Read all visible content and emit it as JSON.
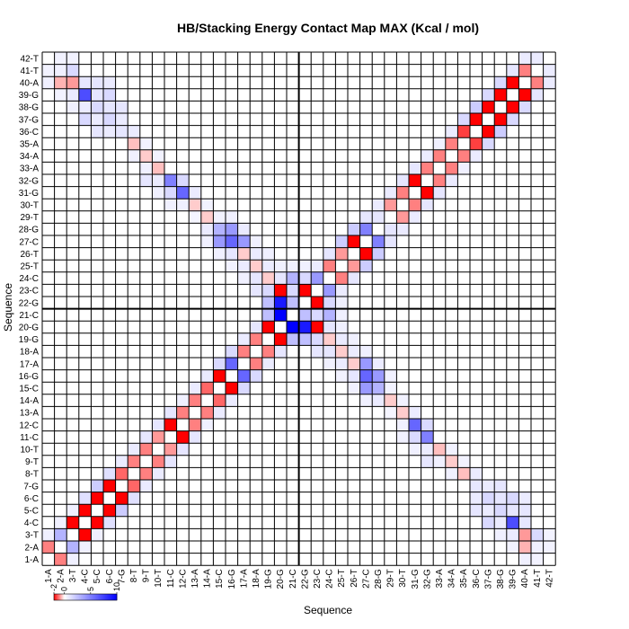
{
  "chart_data": {
    "type": "heatmap",
    "title": "HB/Stacking Energy Contact Map MAX (Kcal / mol)",
    "xlabel": "Sequence",
    "ylabel": "Sequence",
    "labels": [
      "1-A",
      "2-A",
      "3-T",
      "4-C",
      "5-C",
      "6-C",
      "7-G",
      "8-T",
      "9-T",
      "10-T",
      "11-C",
      "12-C",
      "13-A",
      "14-A",
      "15-C",
      "16-G",
      "17-A",
      "18-A",
      "19-G",
      "20-G",
      "21-C",
      "22-G",
      "23-C",
      "24-C",
      "25-T",
      "26-T",
      "27-C",
      "28-G",
      "29-T",
      "30-T",
      "31-G",
      "32-G",
      "33-A",
      "34-A",
      "35-A",
      "36-C",
      "37-G",
      "38-G",
      "39-G",
      "40-A",
      "41-T",
      "42-T"
    ],
    "divider_after_index": 21,
    "color_scale": {
      "min": -2,
      "max": 10,
      "ticks": [
        "-2",
        "0",
        "5",
        "10"
      ],
      "low_color": "#ff0000",
      "mid_color": "#ffffff",
      "high_color": "#0000ff"
    },
    "cells": [
      [
        1,
        2,
        -1
      ],
      [
        2,
        3,
        3
      ],
      [
        3,
        4,
        -2
      ],
      [
        4,
        5,
        -2
      ],
      [
        5,
        6,
        -2
      ],
      [
        6,
        7,
        -2
      ],
      [
        7,
        8,
        -1.2
      ],
      [
        8,
        9,
        -1
      ],
      [
        9,
        10,
        -1
      ],
      [
        10,
        11,
        -0.8
      ],
      [
        11,
        12,
        -2
      ],
      [
        12,
        13,
        -1
      ],
      [
        13,
        14,
        -1
      ],
      [
        14,
        15,
        -1.2
      ],
      [
        15,
        16,
        -2
      ],
      [
        16,
        17,
        6
      ],
      [
        17,
        18,
        -1
      ],
      [
        18,
        19,
        -1
      ],
      [
        19,
        20,
        -2
      ],
      [
        20,
        21,
        10
      ],
      [
        21,
        22,
        -0.8
      ],
      [
        22,
        23,
        -2
      ],
      [
        23,
        24,
        4
      ],
      [
        24,
        25,
        -1
      ],
      [
        25,
        26,
        -0.8
      ],
      [
        26,
        27,
        -2
      ],
      [
        27,
        28,
        5
      ],
      [
        28,
        29,
        1
      ],
      [
        29,
        30,
        -0.8
      ],
      [
        30,
        31,
        -1
      ],
      [
        31,
        32,
        -2
      ],
      [
        32,
        33,
        -1
      ],
      [
        33,
        34,
        -1
      ],
      [
        34,
        35,
        -1
      ],
      [
        35,
        36,
        -1.5
      ],
      [
        36,
        37,
        -2
      ],
      [
        37,
        38,
        -2
      ],
      [
        38,
        39,
        -2
      ],
      [
        39,
        40,
        -2
      ],
      [
        40,
        41,
        -1
      ],
      [
        41,
        42,
        0.8
      ],
      [
        3,
        40,
        -0.8
      ],
      [
        4,
        39,
        7
      ],
      [
        5,
        38,
        1.5
      ],
      [
        6,
        37,
        1.5
      ],
      [
        4,
        37,
        1.5
      ],
      [
        6,
        39,
        1.5
      ],
      [
        5,
        36,
        1
      ],
      [
        7,
        36,
        1
      ],
      [
        3,
        41,
        1.5
      ],
      [
        2,
        40,
        -0.6
      ],
      [
        8,
        35,
        -0.5
      ],
      [
        9,
        34,
        -0.4
      ],
      [
        10,
        33,
        -0.5
      ],
      [
        11,
        32,
        5
      ],
      [
        12,
        31,
        6
      ],
      [
        11,
        31,
        1.5
      ],
      [
        12,
        32,
        1.5
      ],
      [
        9,
        32,
        1
      ],
      [
        13,
        30,
        -0.4
      ],
      [
        14,
        29,
        -0.4
      ],
      [
        15,
        28,
        3
      ],
      [
        16,
        27,
        6
      ],
      [
        15,
        27,
        4
      ],
      [
        16,
        28,
        4
      ],
      [
        17,
        27,
        4
      ],
      [
        17,
        26,
        -0.4
      ],
      [
        18,
        25,
        -0.4
      ],
      [
        19,
        24,
        -0.4
      ],
      [
        18,
        23,
        1
      ],
      [
        19,
        23,
        1.5
      ],
      [
        20,
        22,
        9
      ],
      [
        19,
        22,
        2.5
      ],
      [
        20,
        23,
        -2
      ],
      [
        21,
        24,
        3
      ],
      [
        19,
        21,
        2.5
      ],
      [
        22,
        24,
        1.5
      ],
      [
        21,
        22,
        2.5
      ],
      [
        24,
        26,
        1
      ],
      [
        25,
        27,
        2
      ],
      [
        26,
        28,
        2
      ],
      [
        23,
        25,
        0.8
      ],
      [
        18,
        20,
        1
      ],
      [
        17,
        19,
        0.8
      ],
      [
        16,
        18,
        1.5
      ],
      [
        15,
        17,
        1.5
      ],
      [
        14,
        16,
        0.8
      ],
      [
        13,
        15,
        0.8
      ],
      [
        12,
        14,
        0.6
      ],
      [
        11,
        13,
        1
      ],
      [
        10,
        12,
        1
      ],
      [
        9,
        11,
        1
      ],
      [
        8,
        10,
        0.8
      ],
      [
        7,
        9,
        0.8
      ],
      [
        6,
        8,
        1.2
      ],
      [
        5,
        7,
        2
      ],
      [
        4,
        6,
        1.2
      ],
      [
        3,
        5,
        0.6
      ],
      [
        2,
        4,
        0.6
      ],
      [
        1,
        3,
        0.6
      ],
      [
        27,
        29,
        1
      ],
      [
        28,
        30,
        0.8
      ],
      [
        29,
        31,
        0.8
      ],
      [
        30,
        32,
        1
      ],
      [
        31,
        33,
        1
      ],
      [
        32,
        34,
        0.8
      ],
      [
        33,
        35,
        0.6
      ],
      [
        34,
        36,
        0.8
      ],
      [
        35,
        37,
        1.5
      ],
      [
        36,
        38,
        2
      ],
      [
        37,
        39,
        1.5
      ],
      [
        38,
        40,
        1.5
      ],
      [
        39,
        41,
        1
      ],
      [
        40,
        42,
        0.8
      ],
      [
        5,
        40,
        1
      ],
      [
        6,
        40,
        0.8
      ],
      [
        7,
        38,
        1
      ],
      [
        7,
        37,
        0.8
      ],
      [
        8,
        36,
        0.8
      ],
      [
        3,
        39,
        0.8
      ],
      [
        4,
        40,
        1
      ],
      [
        6,
        38,
        1
      ],
      [
        5,
        39,
        1
      ],
      [
        8,
        34,
        0.6
      ],
      [
        10,
        32,
        0.8
      ],
      [
        9,
        33,
        0.6
      ],
      [
        10,
        34,
        0.5
      ],
      [
        13,
        31,
        0.8
      ],
      [
        14,
        30,
        0.5
      ],
      [
        14,
        28,
        0.8
      ],
      [
        15,
        29,
        0.5
      ],
      [
        16,
        26,
        1
      ],
      [
        17,
        25,
        0.8
      ],
      [
        18,
        24,
        1
      ],
      [
        18,
        26,
        0.8
      ],
      [
        19,
        25,
        0.8
      ],
      [
        20,
        24,
        1
      ],
      [
        17,
        28,
        0.8
      ],
      [
        16,
        29,
        0.6
      ],
      [
        14,
        27,
        0.6
      ],
      [
        12,
        30,
        0.6
      ],
      [
        11,
        30,
        0.6
      ],
      [
        13,
        29,
        0.4
      ],
      [
        10,
        31,
        0.6
      ],
      [
        9,
        35,
        0.5
      ],
      [
        6,
        36,
        0.8
      ],
      [
        5,
        37,
        0.8
      ],
      [
        4,
        38,
        0.8
      ],
      [
        3,
        38,
        0.6
      ],
      [
        2,
        41,
        0.6
      ],
      [
        2,
        39,
        0.5
      ],
      [
        1,
        41,
        0.5
      ],
      [
        1,
        40,
        0.6
      ],
      [
        2,
        42,
        0.5
      ],
      [
        3,
        42,
        0.5
      ],
      [
        19,
        26,
        0.6
      ],
      [
        20,
        25,
        0.6
      ],
      [
        21,
        25,
        0.6
      ],
      [
        17,
        24,
        0.6
      ],
      [
        16,
        25,
        0.5
      ],
      [
        15,
        26,
        0.6
      ],
      [
        18,
        27,
        0.6
      ],
      [
        22,
        25,
        0.6
      ],
      [
        21,
        23,
        1.5
      ]
    ]
  }
}
